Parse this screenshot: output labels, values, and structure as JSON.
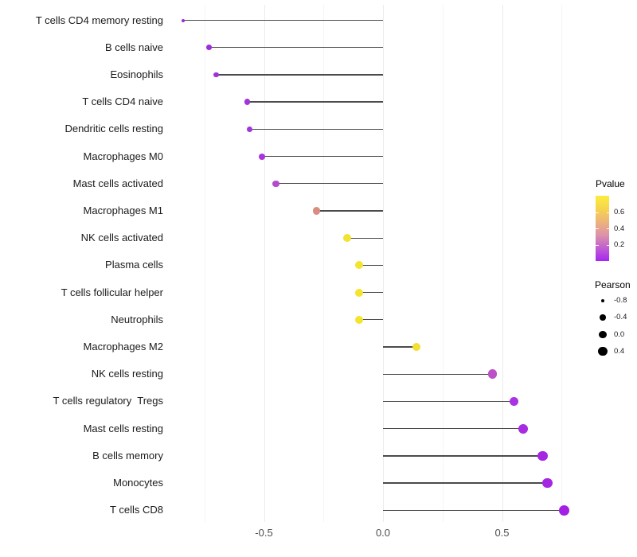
{
  "chart_data": {
    "type": "lollipop",
    "title": "",
    "xlabel": "",
    "ylabel": "",
    "grid": "vertical-major-and-minor",
    "x_ticks": [
      {
        "label": "-0.5",
        "value": -0.5
      },
      {
        "label": "0.0",
        "value": 0.0
      },
      {
        "label": "0.5",
        "value": 0.5
      }
    ],
    "x_minor_gridlines": [
      -0.75,
      -0.25,
      0.25,
      0.75
    ],
    "xlim": [
      -0.92,
      0.85
    ],
    "points": [
      {
        "label": "T cells CD4 memory resting",
        "pearson": -0.84,
        "pvalue": 0.05,
        "color": "#9c2bd9",
        "size": 4
      },
      {
        "label": "B cells naive",
        "pearson": -0.73,
        "pvalue": 0.06,
        "color": "#9c2fd9",
        "size": 6.5
      },
      {
        "label": "Eosinophils",
        "pearson": -0.7,
        "pvalue": 0.07,
        "color": "#9e31d8",
        "size": 6.5
      },
      {
        "label": "T cells CD4 naive",
        "pearson": -0.57,
        "pvalue": 0.09,
        "color": "#a136d8",
        "size": 7.5
      },
      {
        "label": "Dendritic cells resting",
        "pearson": -0.56,
        "pvalue": 0.09,
        "color": "#a136d8",
        "size": 7.5
      },
      {
        "label": "Macrophages M0",
        "pearson": -0.51,
        "pvalue": 0.1,
        "color": "#a835dc",
        "size": 8
      },
      {
        "label": "Mast cells activated",
        "pearson": -0.45,
        "pvalue": 0.15,
        "color": "#b44bcc",
        "size": 8.5
      },
      {
        "label": "Macrophages M1",
        "pearson": -0.28,
        "pvalue": 0.45,
        "color": "#d98c82",
        "size": 9.5
      },
      {
        "label": "NK cells activated",
        "pearson": -0.15,
        "pvalue": 0.68,
        "color": "#f2e32f",
        "size": 10
      },
      {
        "label": "Plasma cells",
        "pearson": -0.1,
        "pvalue": 0.7,
        "color": "#f4e42c",
        "size": 10
      },
      {
        "label": "T cells follicular helper",
        "pearson": -0.1,
        "pvalue": 0.7,
        "color": "#f4e42c",
        "size": 10
      },
      {
        "label": "Neutrophils",
        "pearson": -0.1,
        "pvalue": 0.7,
        "color": "#f4e42c",
        "size": 10
      },
      {
        "label": "Macrophages M2",
        "pearson": 0.14,
        "pvalue": 0.65,
        "color": "#f2df31",
        "size": 10.5
      },
      {
        "label": "NK cells resting",
        "pearson": 0.46,
        "pvalue": 0.2,
        "color": "#bc50c6",
        "size": 11.5
      },
      {
        "label": "T cells regulatory  Tregs",
        "pearson": 0.55,
        "pvalue": 0.08,
        "color": "#a832e4",
        "size": 11.5
      },
      {
        "label": "Mast cells resting",
        "pearson": 0.59,
        "pvalue": 0.07,
        "color": "#a62ce2",
        "size": 12
      },
      {
        "label": "B cells memory",
        "pearson": 0.67,
        "pvalue": 0.06,
        "color": "#a527e2",
        "size": 12.5
      },
      {
        "label": "Monocytes",
        "pearson": 0.69,
        "pvalue": 0.06,
        "color": "#a527e2",
        "size": 12.5
      },
      {
        "label": "T cells CD8",
        "pearson": 0.76,
        "pvalue": 0.05,
        "color": "#a21fe4",
        "size": 13
      }
    ],
    "legend": {
      "pvalue": {
        "title": "Pvalue",
        "ticks": [
          {
            "label": "0.6",
            "value": 0.6
          },
          {
            "label": "0.4",
            "value": 0.4
          },
          {
            "label": "0.2",
            "value": 0.2
          }
        ],
        "domain": [
          0.0,
          0.8
        ],
        "gradient_bottom_to_top": [
          "#a726f2",
          "#c05fd0",
          "#dc93a8",
          "#edb37b",
          "#f6d54c",
          "#fbec3f"
        ]
      },
      "pearson": {
        "title": "Pearson",
        "entries": [
          {
            "label": "-0.8",
            "size": 4
          },
          {
            "label": "-0.4",
            "size": 7.5
          },
          {
            "label": "0.0",
            "size": 9.5
          },
          {
            "label": "0.4",
            "size": 11.5
          }
        ]
      }
    },
    "colors": {
      "stick": "#4b4b4b",
      "grid_major": "#ebebeb",
      "grid_minor": "#f5f5f5",
      "axis_text": "#4d4d4d",
      "label_text": "#1a1a1a"
    }
  }
}
